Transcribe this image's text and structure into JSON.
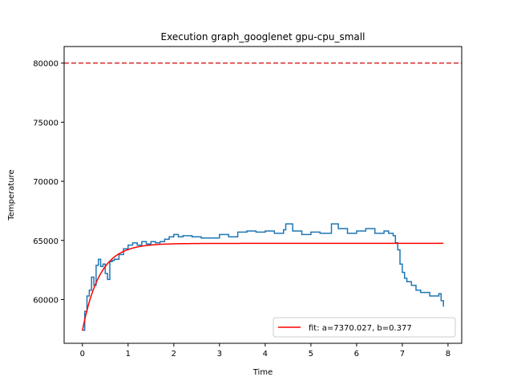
{
  "chart_data": {
    "type": "line",
    "title": "Execution graph_googlenet gpu-cpu_small",
    "xlabel": "Time",
    "ylabel": "Temperature",
    "xlim": [
      -0.4,
      8.3
    ],
    "ylim": [
      56300,
      81400
    ],
    "xticks": [
      0,
      1,
      2,
      3,
      4,
      5,
      6,
      7,
      8
    ],
    "yticks": [
      60000,
      65000,
      70000,
      75000,
      80000
    ],
    "grid": false,
    "legend": {
      "placement": "lower-right",
      "entries": [
        "fit: a=7370.027, b=0.377"
      ]
    },
    "threshold_line": {
      "y": 80000,
      "style": "dashed",
      "color": "#d62728"
    },
    "fit": {
      "name": "fit: a=7370.027, b=0.377",
      "color": "#ff0000",
      "model": "y = c - a*exp(-x/b)",
      "a": 7370.027,
      "b": 0.377,
      "c": 64750,
      "x_range": [
        0,
        7.9
      ]
    },
    "series": [
      {
        "color": "#1f77b4",
        "x": [
          0.0,
          0.05,
          0.1,
          0.15,
          0.2,
          0.25,
          0.3,
          0.35,
          0.4,
          0.45,
          0.5,
          0.55,
          0.6,
          0.65,
          0.7,
          0.8,
          0.9,
          1.0,
          1.1,
          1.2,
          1.3,
          1.4,
          1.5,
          1.6,
          1.7,
          1.8,
          1.9,
          2.0,
          2.1,
          2.2,
          2.4,
          2.6,
          2.8,
          3.0,
          3.2,
          3.4,
          3.6,
          3.8,
          4.0,
          4.2,
          4.4,
          4.45,
          4.6,
          4.8,
          5.0,
          5.2,
          5.45,
          5.6,
          5.8,
          6.0,
          6.2,
          6.4,
          6.6,
          6.7,
          6.8,
          6.85,
          6.9,
          6.95,
          7.0,
          7.05,
          7.1,
          7.2,
          7.3,
          7.4,
          7.5,
          7.6,
          7.7,
          7.8,
          7.85,
          7.9
        ],
        "values": [
          57400,
          59000,
          60300,
          60800,
          61900,
          61200,
          62900,
          63400,
          62800,
          63000,
          62200,
          61700,
          63200,
          63300,
          63400,
          63800,
          64300,
          64600,
          64800,
          64600,
          64900,
          64700,
          64900,
          64800,
          64900,
          65100,
          65300,
          65500,
          65300,
          65400,
          65300,
          65200,
          65200,
          65500,
          65300,
          65700,
          65800,
          65700,
          65800,
          65600,
          65900,
          66400,
          65800,
          65500,
          65700,
          65600,
          66400,
          66000,
          65600,
          65800,
          66000,
          65600,
          65800,
          65600,
          65400,
          64800,
          64200,
          63000,
          62300,
          61800,
          61500,
          61200,
          60800,
          60600,
          60600,
          60300,
          60300,
          60500,
          59900,
          59400
        ]
      }
    ]
  }
}
